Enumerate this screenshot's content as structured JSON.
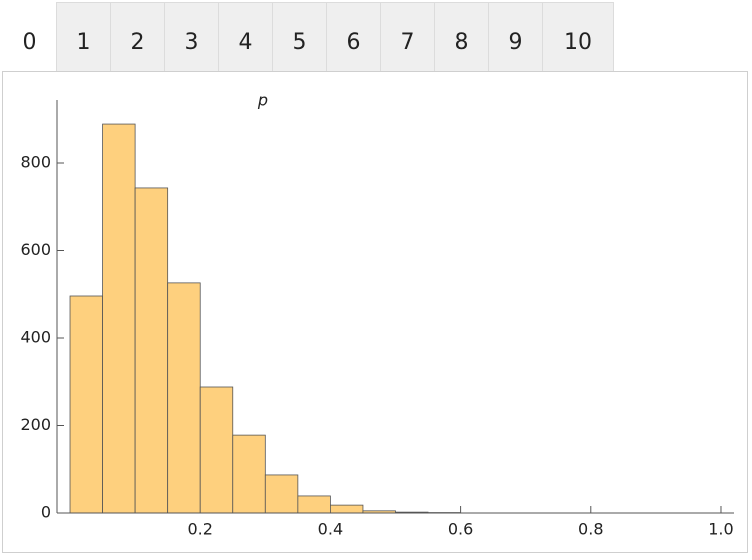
{
  "tabs": {
    "items": [
      "0",
      "1",
      "2",
      "3",
      "4",
      "5",
      "6",
      "7",
      "8",
      "9",
      "10"
    ],
    "selected": 0
  },
  "chart_data": {
    "type": "histogram",
    "title": "p",
    "bins": [
      0,
      0.05,
      0.1,
      0.15,
      0.2,
      0.25,
      0.3,
      0.35,
      0.4,
      0.45,
      0.5,
      0.55,
      0.6
    ],
    "values": [
      496,
      889,
      743,
      526,
      288,
      178,
      87,
      39,
      18,
      5,
      2,
      1
    ],
    "color": "#fed07e",
    "xlim": [
      -0.02,
      1.02
    ],
    "xticks": [
      0.2,
      0.4,
      0.6,
      0.8,
      {
        "value": 1,
        "label": "1.0"
      }
    ],
    "ylim": [
      0,
      944
    ],
    "yticks": [
      0,
      200,
      400,
      600,
      800
    ]
  }
}
